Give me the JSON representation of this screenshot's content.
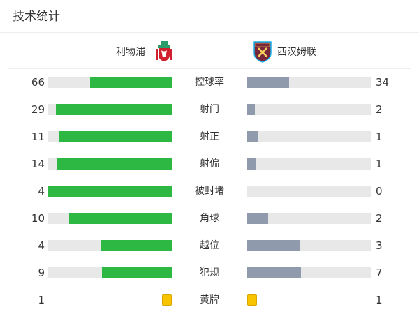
{
  "title": "技术统计",
  "home": {
    "name": "利物浦",
    "logo": "liverpool-crest"
  },
  "away": {
    "name": "西汉姆联",
    "logo": "west-ham-crest"
  },
  "colors": {
    "home": "#2db843",
    "away": "#8f9aac",
    "track": "#e8e8e8",
    "card": "#f8c400"
  },
  "stats": [
    {
      "label": "控球率",
      "home": "66",
      "away": "34"
    },
    {
      "label": "射门",
      "home": "29",
      "away": "2"
    },
    {
      "label": "射正",
      "home": "11",
      "away": "1"
    },
    {
      "label": "射偏",
      "home": "14",
      "away": "1"
    },
    {
      "label": "被封堵",
      "home": "4",
      "away": "0"
    },
    {
      "label": "角球",
      "home": "10",
      "away": "2"
    },
    {
      "label": "越位",
      "home": "4",
      "away": "3"
    },
    {
      "label": "犯规",
      "home": "9",
      "away": "7"
    },
    {
      "label": "黄牌",
      "home": "1",
      "away": "1",
      "type": "card"
    }
  ]
}
